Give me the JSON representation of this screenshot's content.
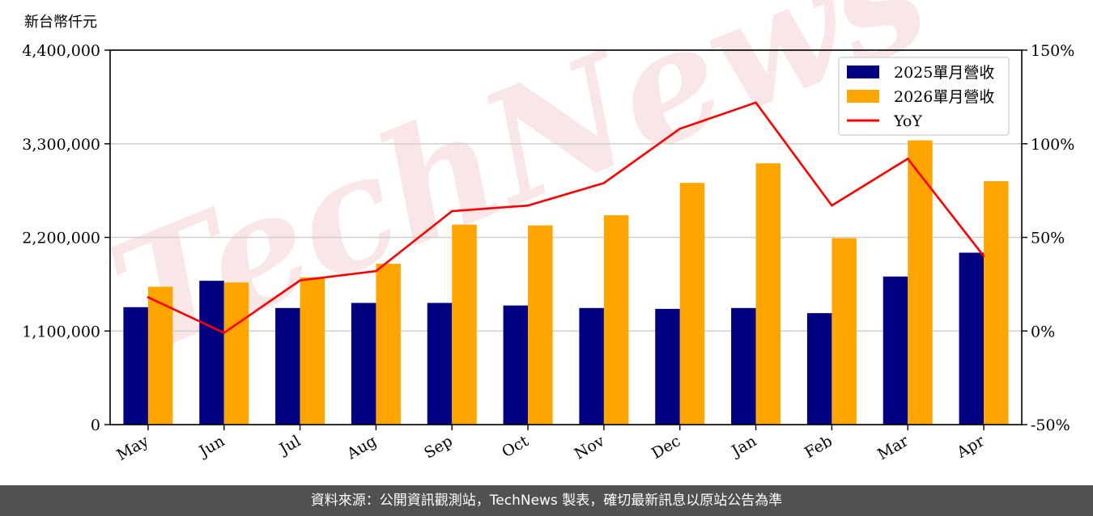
{
  "chart_data": {
    "type": "bar",
    "unit_label": "新台幣仟元",
    "categories": [
      "May",
      "Jun",
      "Jul",
      "Aug",
      "Sep",
      "Oct",
      "Nov",
      "Dec",
      "Jan",
      "Feb",
      "Mar",
      "Apr"
    ],
    "series": [
      {
        "name": "2025單月營收",
        "type": "bar",
        "axis": "left",
        "color": "#000080",
        "values": [
          1380000,
          1690000,
          1370000,
          1430000,
          1430000,
          1400000,
          1370000,
          1360000,
          1370000,
          1310000,
          1740000,
          2020000
        ]
      },
      {
        "name": "2026單月營收",
        "type": "bar",
        "axis": "left",
        "color": "#FFA500",
        "values": [
          1620000,
          1670000,
          1730000,
          1890000,
          2350000,
          2340000,
          2460000,
          2840000,
          3070000,
          2190000,
          3340000,
          2860000
        ]
      },
      {
        "name": "YoY",
        "type": "line",
        "axis": "right",
        "color": "#FF0000",
        "values": [
          18,
          -1,
          27,
          32,
          64,
          67,
          79,
          108,
          122,
          67,
          92,
          40
        ]
      }
    ],
    "ylim_left": [
      0,
      4400000
    ],
    "yticks_left": [
      "0",
      "1,100,000",
      "2,200,000",
      "3,300,000",
      "4,400,000"
    ],
    "ylim_right": [
      -50,
      150
    ],
    "yticks_right": [
      "-50%",
      "0%",
      "50%",
      "100%",
      "150%"
    ],
    "grid": "horizontal",
    "legend_position": "top-right"
  },
  "watermark": "TechNews",
  "footer": {
    "text": "資料來源：公開資訊觀測站，TechNews 製表，確切最新訊息以原站公告為準"
  }
}
